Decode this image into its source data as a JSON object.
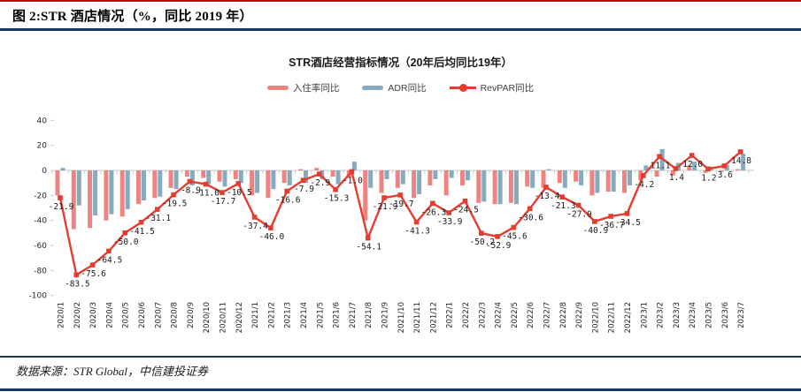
{
  "header": {
    "title": "图 2:STR 酒店情况（%，同比 2019 年）"
  },
  "source_note": "数据来源：STR Global，中信建投证券",
  "chart_data": {
    "type": "bar+line",
    "title": "STR酒店经营指标情况（20年后均同比19年）",
    "ylabel": "",
    "xlabel": "",
    "ylim": [
      -100,
      40
    ],
    "ytick_step": 20,
    "grid": false,
    "legend_position": "top",
    "categories": [
      "2020/1",
      "2020/2",
      "2020/3",
      "2020/4",
      "2020/5",
      "2020/6",
      "2020/7",
      "2020/8",
      "2020/9",
      "2020/10",
      "2020/11",
      "2020/12",
      "2021/1",
      "2021/2",
      "2021/3",
      "2021/4",
      "2021/5",
      "2021/6",
      "2021/7",
      "2021/8",
      "2021/9",
      "2021/10",
      "2021/11",
      "2021/12",
      "2022/1",
      "2022/2",
      "2022/3",
      "2022/4",
      "2022/5",
      "2022/6",
      "2022/7",
      "2022/8",
      "2022/9",
      "2022/10",
      "2022/11",
      "2022/12",
      "2023/1",
      "2023/2",
      "2023/3",
      "2023/4",
      "2023/5",
      "2023/6",
      "2023/7"
    ],
    "series": [
      {
        "name": "入住率同比",
        "type": "bar",
        "color": "#ee8482",
        "values": [
          -20,
          -47,
          -46,
          -40,
          -37,
          -27,
          -22,
          -14,
          -5,
          -6,
          -9,
          -7,
          -20,
          -22,
          -10,
          1,
          2,
          -5,
          -6,
          -40,
          -18,
          -14,
          -22,
          -12,
          -20,
          -12,
          -26,
          -27,
          -26,
          -13,
          -14,
          -10,
          -9,
          -20,
          -17,
          -18,
          -8,
          -5,
          -4,
          4,
          -2,
          -1,
          1
        ]
      },
      {
        "name": "ADR同比",
        "type": "bar",
        "color": "#85abc0",
        "values": [
          2,
          -28,
          -36,
          -35,
          -31,
          -24,
          -21,
          -15,
          -12,
          -11,
          -13,
          -10,
          -18,
          -15,
          -12,
          -10,
          -7,
          -11,
          7,
          -14,
          -7,
          -11,
          -19,
          -7,
          -6,
          -8,
          -25,
          -27,
          -27,
          -14,
          1,
          -14,
          -12,
          -18,
          -17,
          -12,
          4,
          17,
          6,
          7,
          3,
          4.5,
          13.5
        ]
      },
      {
        "name": "RevPAR同比",
        "type": "line",
        "color": "#e43d30",
        "data_labels": true,
        "values": [
          -21.9,
          -83.5,
          -75.6,
          -64.5,
          -50.0,
          -41.5,
          -31.1,
          -19.5,
          -8.9,
          -11.0,
          -17.7,
          -10.5,
          -37.4,
          -46.0,
          -16.6,
          -7.9,
          -2.9,
          -15.3,
          -1.0,
          -54.1,
          -21.9,
          -19.7,
          -41.3,
          -26.3,
          -33.9,
          -24.5,
          -50.2,
          -52.9,
          -45.6,
          -30.6,
          -13.4,
          -21.3,
          -27.9,
          -40.9,
          -36.7,
          -34.5,
          -4.2,
          11.1,
          1.4,
          12.0,
          1.2,
          3.6,
          14.8
        ]
      }
    ],
    "colors": {
      "occupancy_bar": "#ee8482",
      "adr_bar": "#85abc0",
      "revpar_line": "#e43d30",
      "rule_red": "#c00000",
      "rule_navy": "#17375e",
      "axis_gray": "#c9c9c9"
    }
  }
}
